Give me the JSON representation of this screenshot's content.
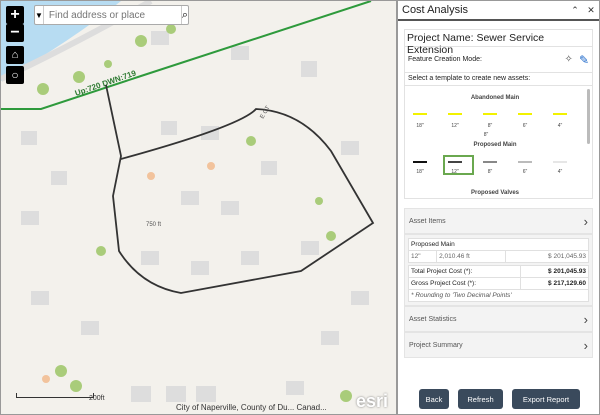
{
  "map": {
    "search_placeholder": "Find address or place",
    "zoom_in": "+",
    "zoom_out": "−",
    "road_label": "Up:720 DWN:719",
    "street_label_1": "750 ft",
    "street_label_2": "E CT",
    "scale_label": "200ft",
    "attribution": "City of Naperville, County of Du... Canad...",
    "logo": "esri",
    "icons": [
      "home-icon",
      "locate-icon",
      "search-icon",
      "chevron-down-icon"
    ]
  },
  "panel": {
    "title": "Cost Analysis",
    "project_name": "Project Name: Sewer Service Extension",
    "feature_mode_label": "Feature Creation Mode:",
    "select_template_label": "Select a template to create new assets:",
    "templates": [
      {
        "group": "Abandoned Main",
        "color": "#f2f200",
        "sizes": [
          "18\"",
          "12\"",
          "8\"",
          "6\"",
          "4\""
        ]
      },
      {
        "group": "Proposed Main",
        "colors": [
          "#111111",
          "#444444",
          "#888888",
          "#bbbbbb",
          "#e6e6e6"
        ],
        "sizes": [
          "18\"",
          "12\"",
          "8\"",
          "6\"",
          "4\""
        ],
        "selected": "12\""
      },
      {
        "group": "Proposed Valves"
      }
    ],
    "stray_label": "8\"",
    "selection_color": "#6aa84f",
    "asset_items": "Asset Items",
    "table": {
      "group": "Proposed Main",
      "row": {
        "size": "12\"",
        "length": "2,010.46 ft",
        "cost": "$ 201,045.93"
      },
      "total_label": "Total Project Cost (*):",
      "total_value": "$ 201,045.93",
      "gross_label": "Gross Project Cost (*):",
      "gross_value": "$ 217,129.60",
      "note": "* Rounding to 'Two Decimal Points'"
    },
    "asset_statistics": "Asset Statistics",
    "project_summary": "Project Summary",
    "buttons": {
      "back": "Back",
      "refresh": "Refresh",
      "export": "Export Report"
    }
  }
}
